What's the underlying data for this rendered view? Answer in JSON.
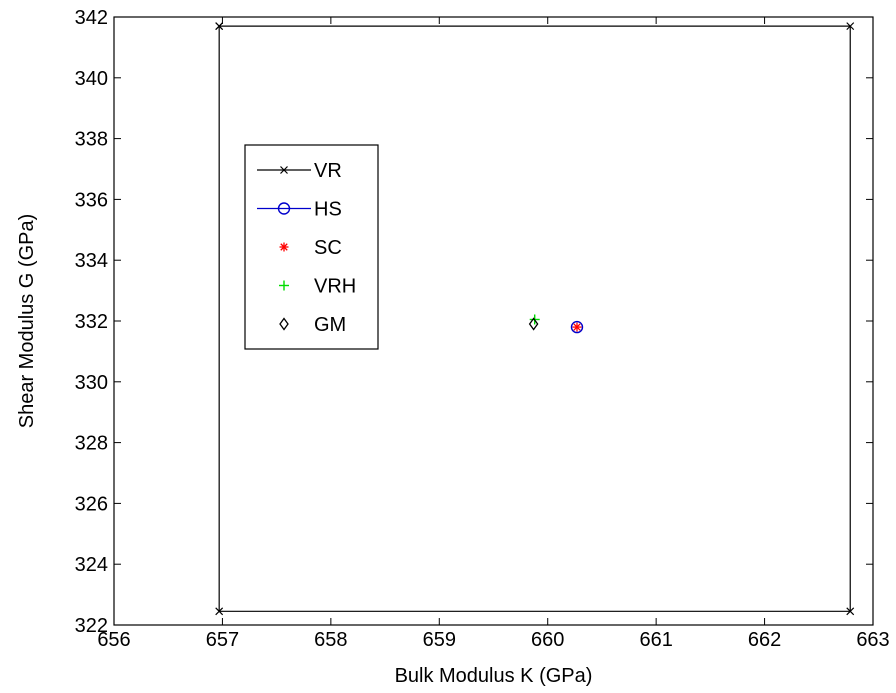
{
  "chart_data": {
    "type": "scatter",
    "title": "",
    "xlabel": "Bulk Modulus K (GPa)",
    "ylabel": "Shear Modulus G (GPa)",
    "xlim": [
      656,
      663
    ],
    "ylim": [
      322,
      342
    ],
    "xticks": [
      "656",
      "657",
      "658",
      "659",
      "660",
      "661",
      "662",
      "663"
    ],
    "yticks": [
      "322",
      "324",
      "326",
      "328",
      "330",
      "332",
      "334",
      "336",
      "338",
      "340",
      "342"
    ],
    "grid": false,
    "legend_position": "upper-left",
    "series": [
      {
        "name": "VR",
        "marker": "x",
        "line": true,
        "color": "#000000",
        "x": [
          656.97,
          662.79,
          662.79,
          656.97,
          656.97
        ],
        "y": [
          341.7,
          341.7,
          322.45,
          322.45,
          341.7
        ]
      },
      {
        "name": "HS",
        "marker": "circle",
        "line": true,
        "color": "#0000cc",
        "x": [
          660.27
        ],
        "y": [
          331.8
        ]
      },
      {
        "name": "SC",
        "marker": "asterisk",
        "line": false,
        "color": "#ff0000",
        "x": [
          660.27
        ],
        "y": [
          331.8
        ]
      },
      {
        "name": "VRH",
        "marker": "plus",
        "line": false,
        "color": "#00dd00",
        "x": [
          659.88
        ],
        "y": [
          332.05
        ]
      },
      {
        "name": "GM",
        "marker": "diamond",
        "line": false,
        "color": "#000000",
        "x": [
          659.87
        ],
        "y": [
          331.9
        ]
      }
    ]
  }
}
